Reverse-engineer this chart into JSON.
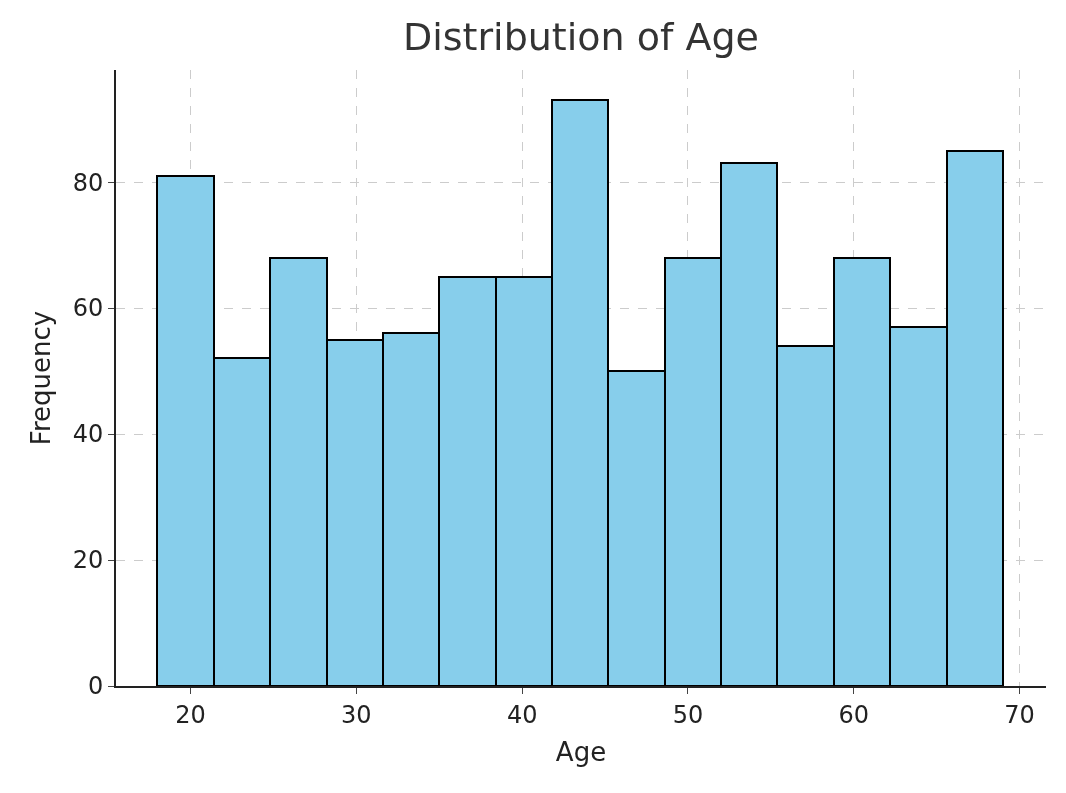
{
  "chart_data": {
    "type": "histogram",
    "title": "Distribution of Age",
    "xlabel": "Age",
    "ylabel": "Frequency",
    "bins": [
      18,
      21.4,
      24.8,
      28.2,
      31.6,
      35,
      38.4,
      41.8,
      45.2,
      48.6,
      52,
      55.4,
      58.8,
      62.2,
      65.6,
      69
    ],
    "values": [
      81,
      52,
      68,
      55,
      56,
      65,
      65,
      93,
      50,
      68,
      83,
      54,
      68,
      57,
      85
    ],
    "color": "#87ceeb",
    "xlim": [
      15.5,
      71.6
    ],
    "xticks": [
      20,
      30,
      40,
      50,
      60,
      70
    ],
    "ylim": [
      0,
      97.8
    ],
    "yticks": [
      0,
      20,
      40,
      60,
      80
    ],
    "grid": true
  }
}
